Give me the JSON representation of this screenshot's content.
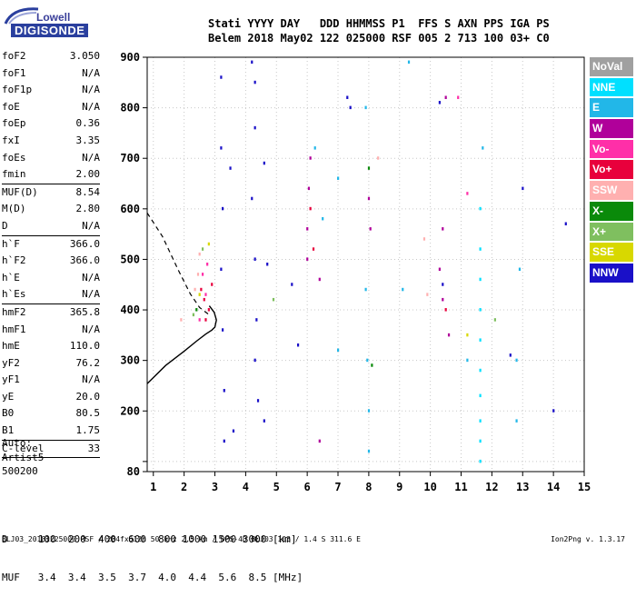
{
  "logo": {
    "top": "Lowell",
    "bottom": "DIGISONDE"
  },
  "header": {
    "labels": "Stati YYYY DAY   DDD HHMMSS P1  FFS S AXN PPS IGA PS",
    "values": "Belem 2018 May02 122 025000 RSF 005 2 713 100 03+ C0"
  },
  "params": [
    {
      "name": "foF2",
      "value": "3.050"
    },
    {
      "name": "foF1",
      "value": "N/A"
    },
    {
      "name": "foF1p",
      "value": "N/A"
    },
    {
      "name": "foE",
      "value": "N/A"
    },
    {
      "name": "foEp",
      "value": "0.36"
    },
    {
      "name": "fxI",
      "value": "3.35"
    },
    {
      "name": "foEs",
      "value": "N/A"
    },
    {
      "name": "fmin",
      "value": "2.00",
      "sep": true
    },
    {
      "name": "MUF(D)",
      "value": "8.54"
    },
    {
      "name": "M(D)",
      "value": "2.80"
    },
    {
      "name": "D",
      "value": "N/A",
      "sep": true
    },
    {
      "name": "h`F",
      "value": "366.0"
    },
    {
      "name": "h`F2",
      "value": "366.0"
    },
    {
      "name": "h`E",
      "value": "N/A"
    },
    {
      "name": "h`Es",
      "value": "N/A",
      "sep": true
    },
    {
      "name": "hmF2",
      "value": "365.8"
    },
    {
      "name": "hmF1",
      "value": "N/A"
    },
    {
      "name": "hmE",
      "value": "110.0"
    },
    {
      "name": "yF2",
      "value": "76.2"
    },
    {
      "name": "yF1",
      "value": "N/A"
    },
    {
      "name": "yE",
      "value": "20.0"
    },
    {
      "name": "B0",
      "value": "80.5"
    },
    {
      "name": "B1",
      "value": "1.75",
      "sep": true
    },
    {
      "name": "C-level",
      "value": "33",
      "sep": true
    }
  ],
  "auto": [
    "Auto:",
    "Artist5",
    "500200"
  ],
  "dmuf": {
    "d_line": "D     100  200  400  600  800 1000 1500 3000 [km]",
    "muf_line": "MUF   3.4  3.4  3.5  3.7  4.0  4.4  5.6  8.5 [MHz]"
  },
  "footer": {
    "left": "BLJ03_20181225000.RSF / 284fx512h 50 kHz 2.5 km / DPS-4D BLJ03 103 / 1.4 S 311.6 E",
    "right": "Ion2Png v. 1.3.17"
  },
  "legend": [
    {
      "label": "NoVal",
      "color": "#a0a0a0"
    },
    {
      "label": "NNE",
      "color": "#00e0ff"
    },
    {
      "label": "E",
      "color": "#22b7e8"
    },
    {
      "label": "W",
      "color": "#b0009a"
    },
    {
      "label": "Vo-",
      "color": "#ff2fa8"
    },
    {
      "label": "Vo+",
      "color": "#e8003c"
    },
    {
      "label": "SSW",
      "color": "#ffb0b0"
    },
    {
      "label": "X-",
      "color": "#0a8a0a"
    },
    {
      "label": "X+",
      "color": "#7fbf5f"
    },
    {
      "label": "SSE",
      "color": "#d8d800"
    },
    {
      "label": "NNW",
      "color": "#1a10c8"
    }
  ],
  "chart_data": {
    "type": "scatter",
    "xlim": [
      0.8,
      15
    ],
    "ylim": [
      80,
      900
    ],
    "x_ticks": [
      1,
      2,
      3,
      4,
      5,
      6,
      7,
      8,
      9,
      10,
      11,
      12,
      13,
      14,
      15
    ],
    "y_ticks": [
      80,
      100,
      200,
      300,
      400,
      500,
      600,
      700,
      800,
      900
    ],
    "y_tick_labels": [
      "80",
      "",
      "200",
      "300",
      "400",
      "500",
      "600",
      "700",
      "800",
      "900"
    ],
    "grid": true,
    "profile_solid": [
      [
        0.8,
        254
      ],
      [
        1.4,
        290
      ],
      [
        2.0,
        318
      ],
      [
        2.4,
        338
      ],
      [
        2.7,
        352
      ],
      [
        2.9,
        360
      ],
      [
        3.0,
        366
      ],
      [
        3.05,
        380
      ],
      [
        2.98,
        395
      ],
      [
        2.82,
        408
      ]
    ],
    "profile_dashed": [
      [
        0.8,
        592
      ],
      [
        1.3,
        545
      ],
      [
        1.8,
        480
      ],
      [
        2.2,
        432
      ],
      [
        2.5,
        405
      ],
      [
        2.82,
        390
      ]
    ],
    "series": [
      {
        "color_key": "NNE",
        "points": [
          [
            11.62,
            520
          ],
          [
            11.62,
            460
          ],
          [
            11.62,
            400
          ],
          [
            11.62,
            340
          ],
          [
            11.62,
            280
          ],
          [
            11.62,
            230
          ],
          [
            11.62,
            180
          ],
          [
            11.62,
            140
          ],
          [
            11.62,
            100
          ],
          [
            11.62,
            600
          ]
        ]
      },
      {
        "color_key": "E",
        "points": [
          [
            6.25,
            720
          ],
          [
            6.5,
            580
          ],
          [
            7.0,
            660
          ],
          [
            7.0,
            320
          ],
          [
            7.9,
            440
          ],
          [
            7.95,
            300
          ],
          [
            8.0,
            200
          ],
          [
            8.0,
            120
          ],
          [
            7.9,
            800
          ],
          [
            12.9,
            480
          ],
          [
            12.8,
            300
          ],
          [
            12.8,
            180
          ],
          [
            11.2,
            300
          ],
          [
            11.7,
            720
          ],
          [
            9.1,
            440
          ],
          [
            9.3,
            890
          ]
        ]
      },
      {
        "color_key": "W",
        "points": [
          [
            6.0,
            560
          ],
          [
            6.05,
            640
          ],
          [
            6.1,
            700
          ],
          [
            6.0,
            500
          ],
          [
            6.4,
            460
          ],
          [
            6.4,
            140
          ],
          [
            10.5,
            820
          ],
          [
            10.4,
            560
          ],
          [
            10.4,
            420
          ],
          [
            10.6,
            350
          ],
          [
            10.3,
            480
          ],
          [
            8.0,
            620
          ],
          [
            8.05,
            560
          ]
        ]
      },
      {
        "color_key": "Vo-",
        "points": [
          [
            2.6,
            470
          ],
          [
            2.7,
            430
          ],
          [
            2.75,
            490
          ],
          [
            2.5,
            380
          ],
          [
            10.9,
            820
          ],
          [
            11.2,
            630
          ]
        ]
      },
      {
        "color_key": "Vo+",
        "points": [
          [
            2.65,
            420
          ],
          [
            2.8,
            400
          ],
          [
            2.9,
            450
          ],
          [
            2.55,
            440
          ],
          [
            2.7,
            380
          ],
          [
            6.1,
            600
          ],
          [
            6.2,
            520
          ],
          [
            10.5,
            400
          ]
        ]
      },
      {
        "color_key": "SSW",
        "points": [
          [
            2.5,
            510
          ],
          [
            2.45,
            470
          ],
          [
            2.35,
            440
          ],
          [
            9.8,
            540
          ],
          [
            9.9,
            430
          ],
          [
            8.3,
            700
          ],
          [
            1.9,
            380
          ]
        ]
      },
      {
        "color_key": "X-",
        "points": [
          [
            2.4,
            400
          ],
          [
            8.1,
            290
          ],
          [
            8.0,
            680
          ]
        ]
      },
      {
        "color_key": "X+",
        "points": [
          [
            2.3,
            390
          ],
          [
            2.6,
            520
          ],
          [
            12.1,
            380
          ],
          [
            4.9,
            420
          ]
        ]
      },
      {
        "color_key": "SSE",
        "points": [
          [
            2.5,
            430
          ],
          [
            2.8,
            530
          ],
          [
            11.2,
            350
          ]
        ]
      },
      {
        "color_key": "NNW",
        "points": [
          [
            3.2,
            860
          ],
          [
            3.2,
            720
          ],
          [
            3.25,
            600
          ],
          [
            3.2,
            480
          ],
          [
            3.25,
            360
          ],
          [
            3.3,
            240
          ],
          [
            3.3,
            140
          ],
          [
            3.5,
            680
          ],
          [
            3.6,
            160
          ],
          [
            4.2,
            890
          ],
          [
            4.3,
            850
          ],
          [
            4.3,
            760
          ],
          [
            4.2,
            620
          ],
          [
            4.3,
            500
          ],
          [
            4.35,
            380
          ],
          [
            4.3,
            300
          ],
          [
            4.4,
            220
          ],
          [
            4.6,
            180
          ],
          [
            4.6,
            690
          ],
          [
            4.7,
            490
          ],
          [
            7.3,
            820
          ],
          [
            7.4,
            800
          ],
          [
            10.3,
            810
          ],
          [
            10.4,
            450
          ],
          [
            12.6,
            310
          ],
          [
            13.0,
            640
          ],
          [
            14.4,
            570
          ],
          [
            14.0,
            200
          ],
          [
            5.5,
            450
          ],
          [
            5.7,
            330
          ]
        ]
      }
    ]
  }
}
